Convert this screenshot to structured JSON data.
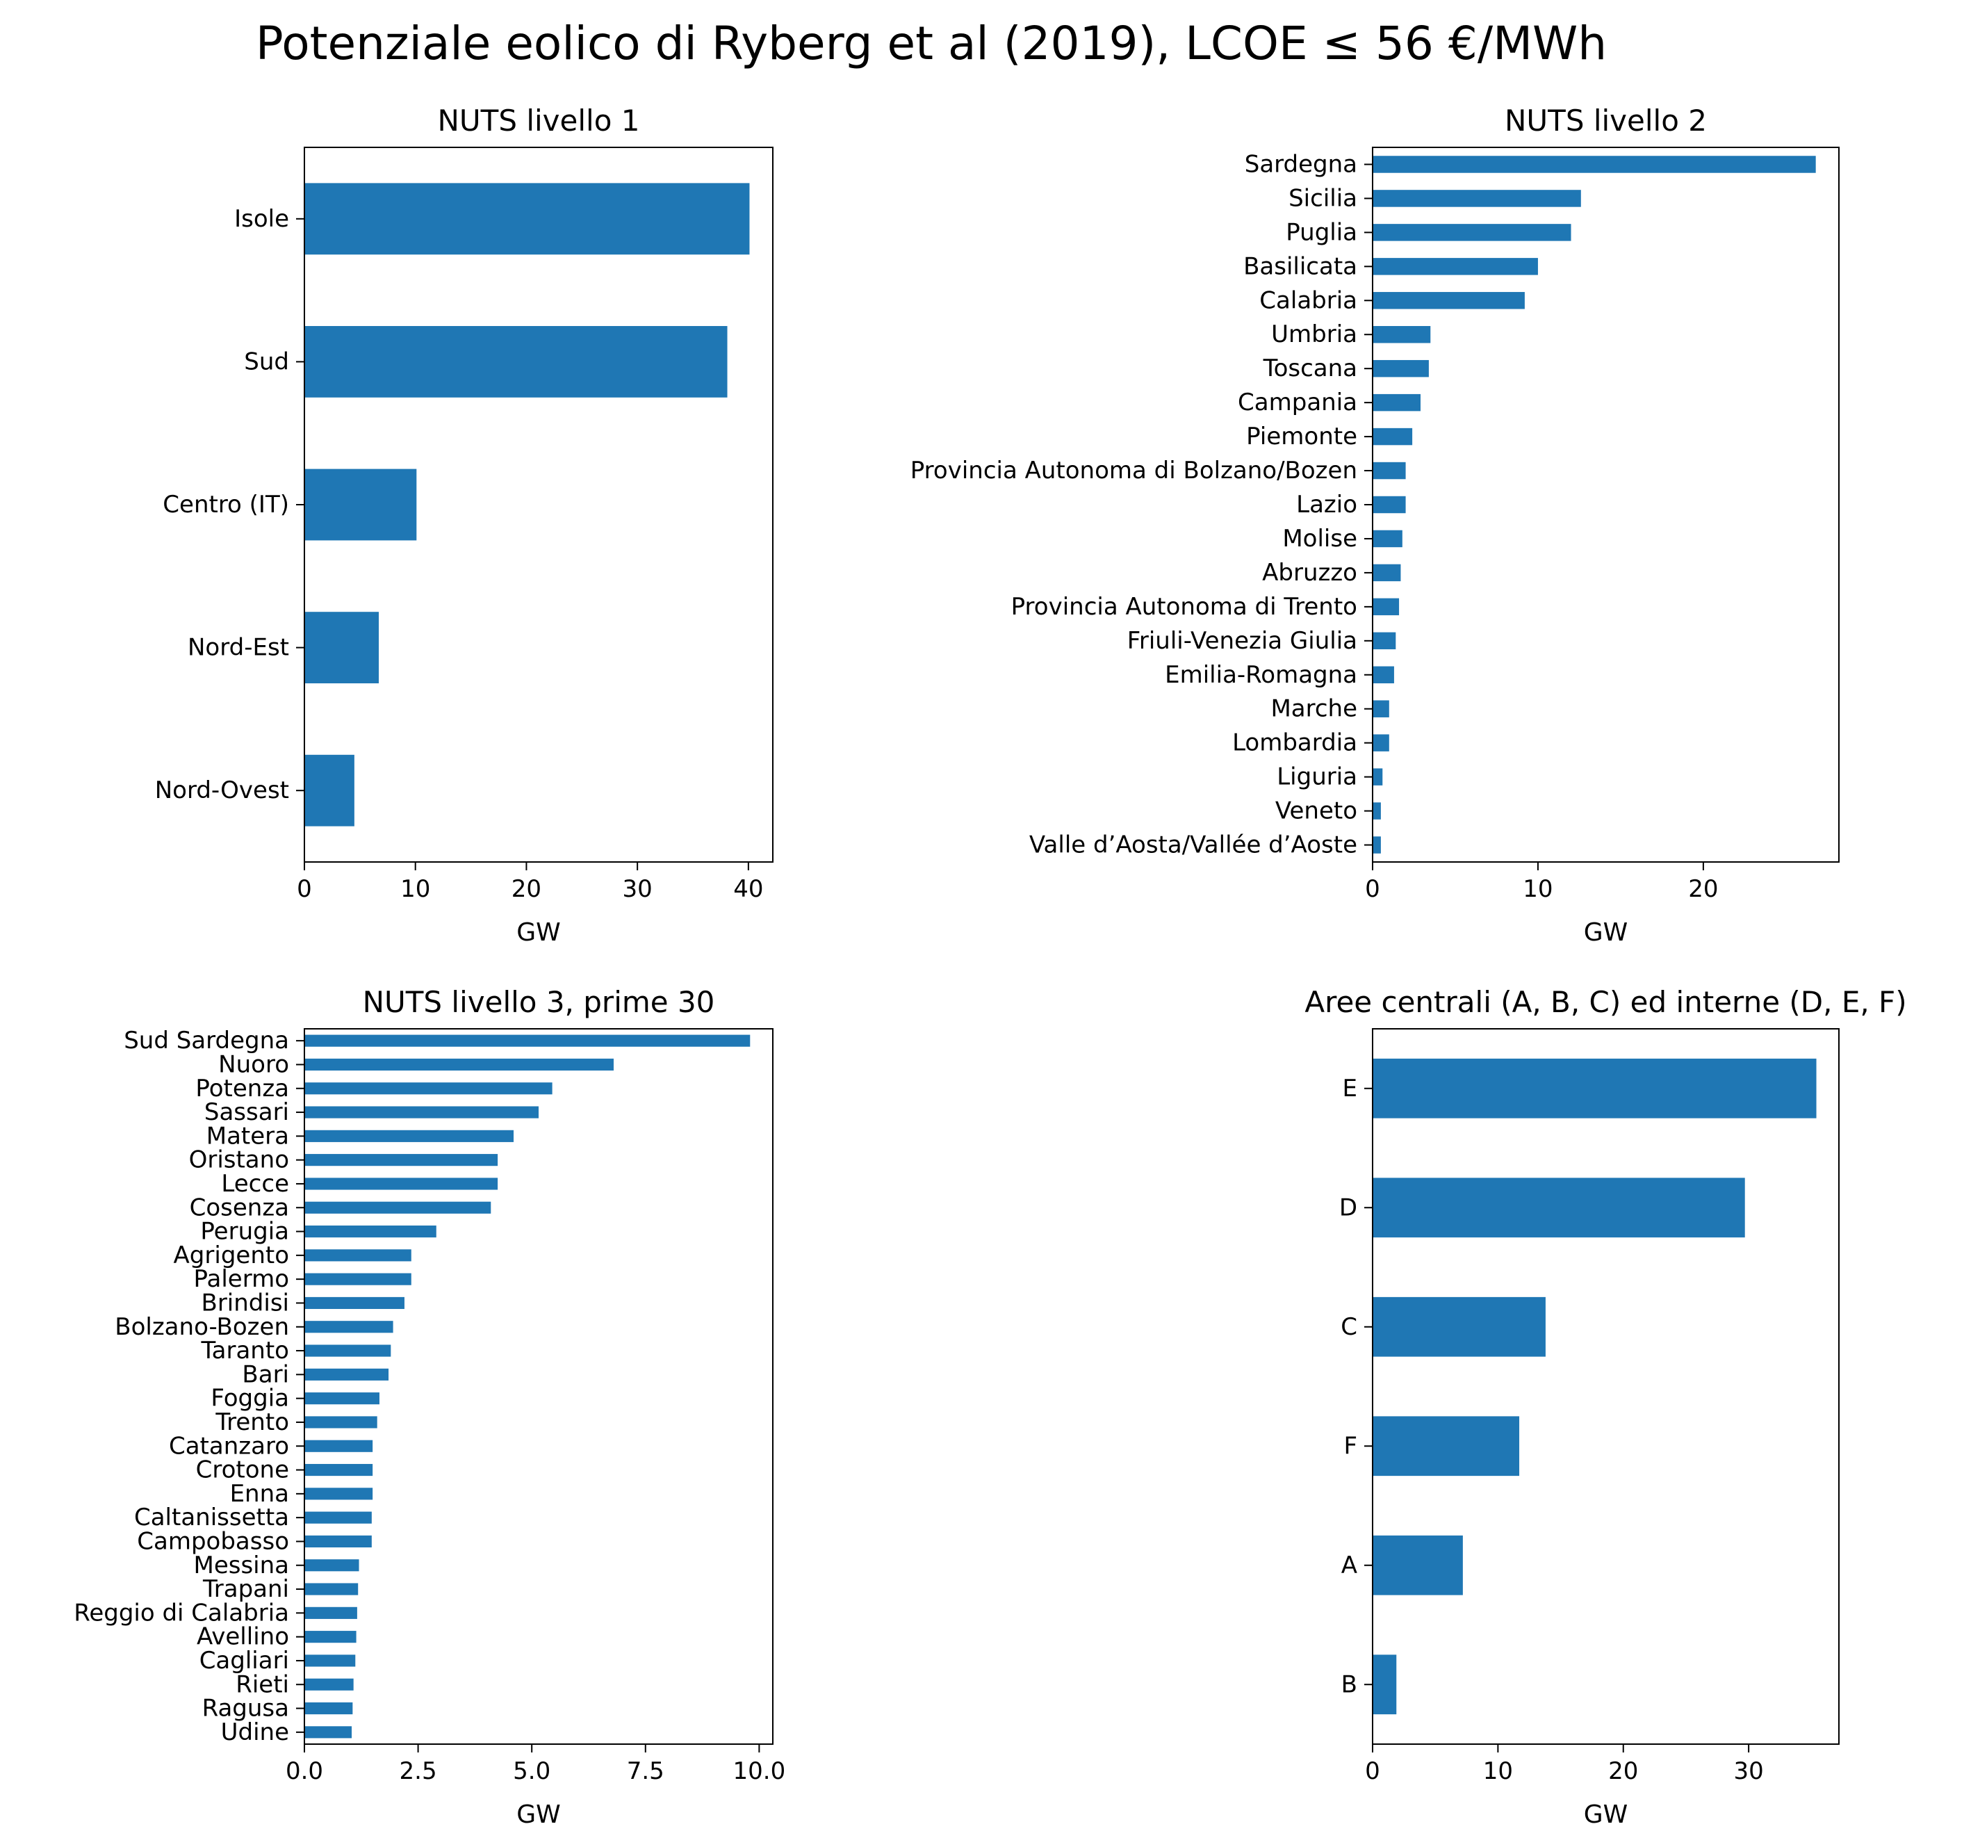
{
  "figure_title": "Potenziale eolico di Ryberg et al (2019), LCOE ≤ 56 €/MWh",
  "colors": {
    "bar": "#1f77b4",
    "axes": "#000000",
    "background": "#ffffff"
  },
  "chart_data": [
    {
      "type": "bar",
      "orientation": "horizontal",
      "title": "NUTS livello 1",
      "xlabel": "GW",
      "ylabel": "",
      "xlim": [
        0,
        42.2
      ],
      "xticks": [
        0,
        10,
        20,
        30,
        40
      ],
      "xtick_labels": [
        "0",
        "10",
        "20",
        "30",
        "40"
      ],
      "categories": [
        "Isole",
        "Sud",
        "Centro (IT)",
        "Nord-Est",
        "Nord-Ovest"
      ],
      "values": [
        40.1,
        38.1,
        10.1,
        6.7,
        4.5
      ],
      "grid": false,
      "legend": "none"
    },
    {
      "type": "bar",
      "orientation": "horizontal",
      "title": "NUTS livello 2",
      "xlabel": "GW",
      "ylabel": "",
      "xlim": [
        0,
        28.2
      ],
      "xticks": [
        0,
        10,
        20
      ],
      "xtick_labels": [
        "0",
        "10",
        "20"
      ],
      "categories": [
        "Sardegna",
        "Sicilia",
        "Puglia",
        "Basilicata",
        "Calabria",
        "Umbria",
        "Toscana",
        "Campania",
        "Piemonte",
        "Provincia Autonoma di Bolzano/Bozen",
        "Lazio",
        "Molise",
        "Abruzzo",
        "Provincia Autonoma di Trento",
        "Friuli-Venezia Giulia",
        "Emilia-Romagna",
        "Marche",
        "Lombardia",
        "Liguria",
        "Veneto",
        "Valle d’Aosta/Vallée d’Aoste"
      ],
      "values": [
        26.8,
        12.6,
        12.0,
        10.0,
        9.2,
        3.5,
        3.4,
        2.9,
        2.4,
        2.0,
        2.0,
        1.8,
        1.7,
        1.6,
        1.4,
        1.3,
        1.0,
        1.0,
        0.6,
        0.5,
        0.5
      ],
      "grid": false,
      "legend": "none"
    },
    {
      "type": "bar",
      "orientation": "horizontal",
      "title": "NUTS livello 3, prime 30",
      "xlabel": "GW",
      "ylabel": "",
      "xlim": [
        0,
        10.3
      ],
      "xticks": [
        0,
        2.5,
        5,
        7.5,
        10
      ],
      "xtick_labels": [
        "0.0",
        "2.5",
        "5.0",
        "7.5",
        "10.0"
      ],
      "categories": [
        "Sud Sardegna",
        "Nuoro",
        "Potenza",
        "Sassari",
        "Matera",
        "Oristano",
        "Lecce",
        "Cosenza",
        "Perugia",
        "Agrigento",
        "Palermo",
        "Brindisi",
        "Bolzano-Bozen",
        "Taranto",
        "Bari",
        "Foggia",
        "Trento",
        "Catanzaro",
        "Crotone",
        "Enna",
        "Caltanissetta",
        "Campobasso",
        "Messina",
        "Trapani",
        "Reggio di Calabria",
        "Avellino",
        "Cagliari",
        "Rieti",
        "Ragusa",
        "Udine"
      ],
      "values": [
        9.8,
        6.8,
        5.45,
        5.15,
        4.6,
        4.25,
        4.25,
        4.1,
        2.9,
        2.35,
        2.35,
        2.2,
        1.95,
        1.9,
        1.85,
        1.65,
        1.6,
        1.5,
        1.5,
        1.5,
        1.48,
        1.48,
        1.2,
        1.18,
        1.16,
        1.14,
        1.12,
        1.08,
        1.06,
        1.04
      ],
      "grid": false,
      "legend": "none"
    },
    {
      "type": "bar",
      "orientation": "horizontal",
      "title": "Aree centrali (A, B, C) ed interne (D, E, F)",
      "xlabel": "GW",
      "ylabel": "",
      "xlim": [
        0,
        37.2
      ],
      "xticks": [
        0,
        10,
        20,
        30
      ],
      "xtick_labels": [
        "0",
        "10",
        "20",
        "30"
      ],
      "categories": [
        "E",
        "D",
        "C",
        "F",
        "A",
        "B"
      ],
      "values": [
        35.4,
        29.7,
        13.8,
        11.7,
        7.2,
        1.9
      ],
      "grid": false,
      "legend": "none"
    }
  ]
}
